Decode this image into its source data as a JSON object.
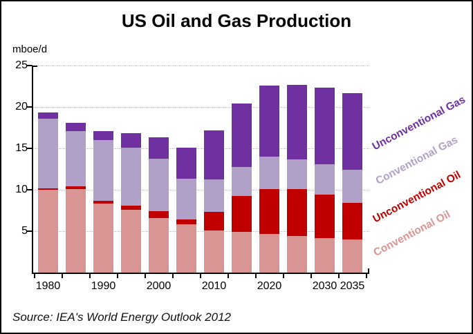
{
  "title": "US Oil and Gas Production",
  "y_axis": {
    "unit_label": "mboe/d",
    "ticks": [
      "25",
      "20",
      "15",
      "10",
      "5"
    ],
    "min": 0,
    "max": 25,
    "step": 5
  },
  "x_axis": {
    "visible_labels": [
      "1980",
      "1990",
      "2000",
      "2010",
      "2020",
      "2030",
      "2035"
    ]
  },
  "source": "Source: IEA's World Energy Outlook 2012",
  "colors": {
    "conventional_oil": "#D89593",
    "unconventional_oil": "#C00000",
    "conventional_gas": "#B1A0C7",
    "unconventional_gas": "#7030A0",
    "gridline": "#b9b9b9",
    "axis": "#000000"
  },
  "legend": {
    "items": [
      {
        "label": "Unconventional Gas",
        "color": "#7030A0"
      },
      {
        "label": "Conventional Gas",
        "color": "#B1A0C7"
      },
      {
        "label": "Unconventional Oil",
        "color": "#C00000"
      },
      {
        "label": "Conventional Oil",
        "color": "#D89593"
      }
    ]
  },
  "chart_data": {
    "type": "bar",
    "stacked": true,
    "title": "US Oil and Gas Production",
    "ylabel": "mboe/d",
    "ylim": [
      0,
      25
    ],
    "grid": "horizontal-dotted",
    "legend_position": "right-rotated",
    "categories": [
      "1980",
      "1985",
      "1990",
      "1995",
      "2000",
      "2005",
      "2010",
      "2015",
      "2020",
      "2025",
      "2030",
      "2035"
    ],
    "series": [
      {
        "name": "Conventional Oil",
        "color": "#D89593",
        "values": [
          10.0,
          10.05,
          8.3,
          7.6,
          6.6,
          5.8,
          5.1,
          4.9,
          4.65,
          4.45,
          4.15,
          4.0
        ]
      },
      {
        "name": "Unconventional Oil",
        "color": "#C00000",
        "values": [
          0.2,
          0.4,
          0.35,
          0.45,
          0.8,
          0.65,
          2.2,
          4.35,
          5.45,
          5.6,
          5.25,
          4.45
        ]
      },
      {
        "name": "Conventional Gas",
        "color": "#B1A0C7",
        "values": [
          8.35,
          6.65,
          7.35,
          7.05,
          6.35,
          4.9,
          3.95,
          3.5,
          3.9,
          3.65,
          3.7,
          4.0
        ]
      },
      {
        "name": "Unconventional Gas",
        "color": "#7030A0",
        "values": [
          0.75,
          1.0,
          1.05,
          1.7,
          2.6,
          3.7,
          5.9,
          7.7,
          8.55,
          9.0,
          9.25,
          9.25
        ]
      }
    ],
    "totals": [
      19.3,
      18.1,
      17.05,
      16.8,
      16.35,
      15.05,
      17.15,
      20.45,
      22.55,
      22.7,
      22.35,
      21.7
    ]
  }
}
